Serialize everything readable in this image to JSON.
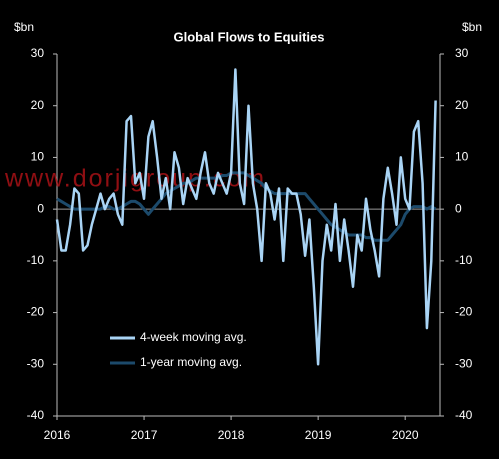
{
  "chart_data": {
    "type": "line",
    "title": "Global Flows to Equities",
    "y_label": "$bn",
    "y2_label": "$bn",
    "watermark": "www.dorjigroup.com",
    "x": [
      2016,
      2016.05,
      2016.1,
      2016.15,
      2016.2,
      2016.25,
      2016.3,
      2016.35,
      2016.4,
      2016.45,
      2016.5,
      2016.55,
      2016.6,
      2016.65,
      2016.7,
      2016.75,
      2016.8,
      2016.85,
      2016.9,
      2016.95,
      2017,
      2017.05,
      2017.1,
      2017.15,
      2017.2,
      2017.25,
      2017.3,
      2017.35,
      2017.4,
      2017.45,
      2017.5,
      2017.55,
      2017.6,
      2017.65,
      2017.7,
      2017.75,
      2017.8,
      2017.85,
      2017.9,
      2017.95,
      2018,
      2018.05,
      2018.1,
      2018.15,
      2018.2,
      2018.25,
      2018.3,
      2018.35,
      2018.4,
      2018.45,
      2018.5,
      2018.55,
      2018.6,
      2018.65,
      2018.7,
      2018.75,
      2018.8,
      2018.85,
      2018.9,
      2018.95,
      2019,
      2019.05,
      2019.1,
      2019.15,
      2019.2,
      2019.25,
      2019.3,
      2019.35,
      2019.4,
      2019.45,
      2019.5,
      2019.55,
      2019.6,
      2019.65,
      2019.7,
      2019.75,
      2019.8,
      2019.85,
      2019.9,
      2019.95,
      2020,
      2020.05,
      2020.1,
      2020.15,
      2020.2,
      2020.25,
      2020.3,
      2020.35
    ],
    "series": [
      {
        "name": "4-week moving avg.",
        "color": "#a9d4f5",
        "values": [
          -2,
          -8,
          -8,
          -3,
          4,
          3,
          -8,
          -7,
          -3,
          0,
          3,
          0,
          2,
          3,
          -1,
          -3,
          17,
          18,
          5,
          7,
          2,
          14,
          17,
          10,
          2,
          6,
          0,
          11,
          8,
          1,
          6,
          4,
          2,
          7,
          11,
          5,
          3,
          7,
          5,
          3,
          7,
          27,
          5,
          1,
          20,
          5,
          0,
          -10,
          5,
          3,
          -2,
          4,
          -10,
          4,
          3,
          3,
          -1,
          -9,
          -2,
          -15,
          -30,
          -10,
          -3,
          -8,
          1,
          -10,
          -2,
          -8,
          -15,
          -5,
          -8,
          2,
          -4,
          -8,
          -13,
          2,
          8,
          3,
          -3,
          10,
          2,
          0,
          15,
          17,
          5,
          -23,
          -10,
          21
        ]
      },
      {
        "name": "1-year moving avg.",
        "color": "#1c4a6b",
        "values": [
          2,
          1.5,
          1,
          0.5,
          0,
          0,
          0,
          0,
          0,
          0,
          0,
          0.5,
          0.5,
          0,
          0,
          0.5,
          1,
          1.5,
          1.5,
          1,
          0,
          -1,
          0,
          1,
          2,
          3,
          3.5,
          4,
          4.5,
          5,
          5,
          5.5,
          6,
          6,
          6,
          6,
          6,
          6,
          6.5,
          6.5,
          7,
          7,
          7,
          7,
          6.5,
          6,
          5.5,
          5,
          4,
          3.5,
          3,
          3,
          3,
          3,
          3,
          3,
          3,
          3,
          2,
          1,
          0,
          -1,
          -2,
          -3,
          -3.5,
          -4,
          -4.5,
          -5,
          -5,
          -5,
          -5,
          -5.5,
          -5.5,
          -6,
          -6,
          -6,
          -6,
          -5,
          -4,
          -3,
          -1,
          0,
          0.5,
          0.5,
          0.5,
          0,
          0.5,
          0
        ]
      }
    ],
    "xlim": [
      2016,
      2020.4
    ],
    "xticks": [
      2016,
      2017,
      2018,
      2019,
      2020
    ],
    "ylim": [
      -40,
      30
    ],
    "yticks": [
      -40,
      -30,
      -20,
      -10,
      0,
      10,
      20,
      30
    ],
    "y2lim": [
      -40,
      30
    ],
    "y2ticks": [
      -40,
      -30,
      -20,
      -10,
      0,
      10,
      20,
      30
    ],
    "legend": "lower left",
    "background": "#000000"
  }
}
